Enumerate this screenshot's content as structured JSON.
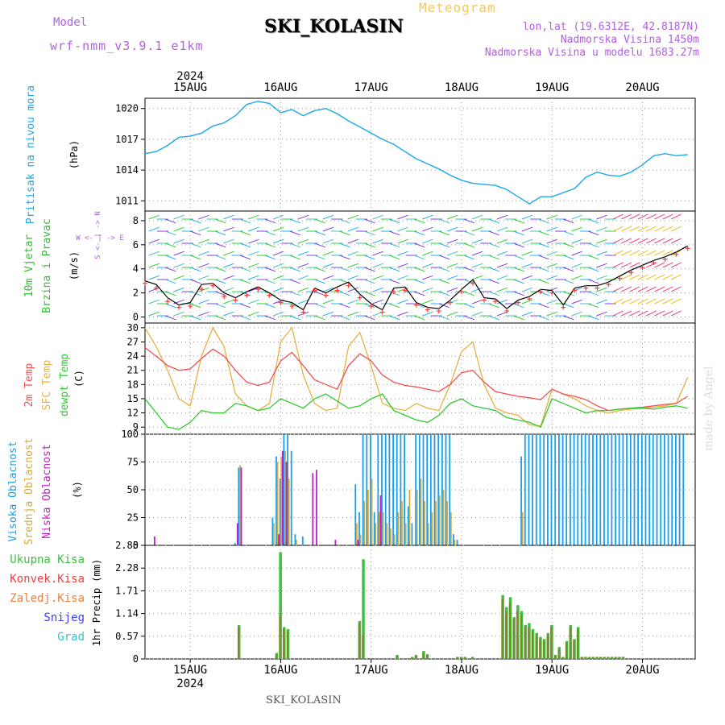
{
  "header": {
    "model_label": "Model",
    "model_value": "wrf-nmm_v3.9.1  e1km",
    "title": "SKI_KOLASIN",
    "meteogram_label": "Meteogram",
    "info_lines": [
      "lon,lat (19.6312E, 42.8187N)",
      "Nadmorska Visina 1450m",
      "Nadmorska Visina u modelu 1683.27m"
    ]
  },
  "footer_station": "SKI_KOLASIN",
  "watermark": "made by Angel",
  "time_axis": {
    "year": "2024",
    "days": [
      "15AUG",
      "16AUG",
      "17AUG",
      "18AUG",
      "19AUG",
      "20AUG"
    ]
  },
  "colors": {
    "pressure": "#1ca8e8",
    "temp2m": "#f05050",
    "sfc": "#e8b040",
    "dewpt": "#30c830",
    "high_cloud": "#18a0f0",
    "mid_cloud": "#d8a838",
    "low_cloud": "#c020c0",
    "precip_total": "#40c040",
    "precip_conv": "#f04040",
    "precip_frozen": "#f08040",
    "snow": "#4040f0",
    "graupel": "#40c0c0"
  },
  "panels": {
    "pressure": {
      "label": "Pritisak na nivou mora",
      "unit": "(hPa)",
      "ticks": [
        "1020",
        "1017",
        "1014",
        "1011"
      ]
    },
    "wind": {
      "label1": "10m  Vjetar",
      "label2": "Brzina i Pravac",
      "unit": "(m/s)",
      "compass": "W <- | -> E",
      "compass_v": "S <- | -> N",
      "ticks": [
        "8",
        "6",
        "4",
        "2",
        "0"
      ]
    },
    "temp": {
      "label1": "2m Temp",
      "label2": "SFC Temp",
      "label3": "dewpt Temp",
      "unit": "(C)",
      "ticks": [
        "30",
        "27",
        "24",
        "21",
        "18",
        "15",
        "12",
        "9"
      ]
    },
    "cloud": {
      "label1": "Visoka Oblacnost",
      "label2": "Srednja Oblacnost",
      "label3": "Niska Oblacnost",
      "unit": "(%)",
      "ticks": [
        "100",
        "75",
        "50",
        "25",
        "0"
      ]
    },
    "precip": {
      "labels": [
        "Ukupna Kisa",
        "Konvek.Kisa",
        "Zaledj.Kisa",
        "Snijeg",
        "Grad"
      ],
      "unit": "1hr Precip (mm)",
      "ticks": [
        "2.85",
        "2.28",
        "1.71",
        "1.14",
        "0.57",
        "0"
      ]
    }
  },
  "chart_data": [
    {
      "type": "line",
      "title": "",
      "ylabel": "(hPa)",
      "ylim": [
        1010,
        1021
      ],
      "x_start": "2024-08-14 12:00",
      "x": [
        0,
        3,
        6,
        9,
        12,
        15,
        18,
        21,
        24,
        27,
        30,
        33,
        36,
        39,
        42,
        45,
        48,
        51,
        54,
        57,
        60,
        63,
        66,
        69,
        72,
        75,
        78,
        81,
        84,
        87,
        90,
        93,
        96,
        99,
        102,
        105,
        108,
        111,
        114,
        117,
        120,
        123,
        126,
        129,
        132,
        135,
        138,
        141,
        144
      ],
      "series": [
        {
          "name": "Pritisak",
          "values": [
            1015.6,
            1015.8,
            1016.4,
            1017.2,
            1017.3,
            1017.6,
            1018.3,
            1018.6,
            1019.3,
            1020.4,
            1020.7,
            1020.5,
            1019.6,
            1019.9,
            1019.3,
            1019.8,
            1020.0,
            1019.5,
            1018.8,
            1018.2,
            1017.6,
            1017.0,
            1016.5,
            1015.8,
            1015.1,
            1014.6,
            1014.1,
            1013.5,
            1013.0,
            1012.7,
            1012.6,
            1012.5,
            1012.1,
            1011.4,
            1010.7,
            1011.4,
            1011.4,
            1011.8,
            1012.2,
            1013.3,
            1013.8,
            1013.5,
            1013.4,
            1013.8,
            1014.5,
            1015.4,
            1015.6,
            1015.4,
            1015.5
          ]
        }
      ]
    },
    {
      "type": "line",
      "title": "",
      "ylabel": "(m/s)",
      "ylim": [
        -0.5,
        8.8
      ],
      "x_start": "2024-08-14 12:00",
      "x": [
        0,
        3,
        6,
        9,
        12,
        15,
        18,
        21,
        24,
        27,
        30,
        33,
        36,
        39,
        42,
        45,
        48,
        51,
        54,
        57,
        60,
        63,
        66,
        69,
        72,
        75,
        78,
        81,
        84,
        87,
        90,
        93,
        96,
        99,
        102,
        105,
        108,
        111,
        114,
        117,
        120,
        123,
        126,
        129,
        132,
        135,
        138,
        141,
        144
      ],
      "series": [
        {
          "name": "Brzina vjetra",
          "values": [
            3.0,
            2.7,
            1.6,
            1.0,
            1.2,
            2.7,
            2.8,
            2.0,
            1.6,
            2.1,
            2.5,
            2.0,
            1.4,
            1.2,
            0.6,
            2.4,
            2.0,
            2.5,
            2.9,
            1.9,
            1.1,
            0.6,
            2.4,
            2.5,
            1.2,
            0.8,
            0.7,
            1.4,
            2.3,
            3.1,
            1.6,
            1.5,
            0.7,
            1.4,
            1.7,
            2.3,
            2.2,
            1.0,
            2.4,
            2.6,
            2.6,
            2.9,
            3.4,
            3.9,
            4.3,
            4.7,
            5.0,
            5.4,
            5.9
          ]
        },
        {
          "name": "Udari",
          "values": [
            2.8,
            2.4,
            1.3,
            0.8,
            0.9,
            2.3,
            2.6,
            1.7,
            1.4,
            1.8,
            2.3,
            1.8,
            1.2,
            0.9,
            0.4,
            2.2,
            1.8,
            2.2,
            2.6,
            1.6,
            0.9,
            0.4,
            2.1,
            2.2,
            1.0,
            0.6,
            0.5,
            1.2,
            2.1,
            2.8,
            1.4,
            1.3,
            0.5,
            1.2,
            1.5,
            2.1,
            2.0,
            0.8,
            2.2,
            2.4,
            2.4,
            2.7,
            3.2,
            3.7,
            4.1,
            4.5,
            4.8,
            5.2,
            5.7
          ]
        }
      ]
    },
    {
      "type": "line",
      "title": "",
      "ylabel": "(C)",
      "ylim": [
        7.5,
        31
      ],
      "x_start": "2024-08-14 12:00",
      "x": [
        0,
        3,
        6,
        9,
        12,
        15,
        18,
        21,
        24,
        27,
        30,
        33,
        36,
        39,
        42,
        45,
        48,
        51,
        54,
        57,
        60,
        63,
        66,
        69,
        72,
        75,
        78,
        81,
        84,
        87,
        90,
        93,
        96,
        99,
        102,
        105,
        108,
        111,
        114,
        117,
        120,
        123,
        126,
        129,
        132,
        135,
        138,
        141,
        144
      ],
      "series": [
        {
          "name": "2m Temp",
          "values": [
            25.8,
            24.0,
            22.0,
            21.0,
            21.3,
            23.5,
            25.5,
            24.0,
            21.0,
            18.5,
            17.8,
            18.5,
            23.0,
            24.8,
            22.0,
            19.0,
            18.0,
            17.0,
            22.0,
            24.5,
            23.0,
            20.0,
            18.5,
            17.8,
            17.5,
            17.0,
            16.5,
            18.0,
            20.5,
            21.0,
            18.5,
            16.5,
            16.0,
            15.5,
            15.2,
            14.8,
            17.0,
            16.0,
            15.5,
            14.8,
            13.5,
            12.5,
            12.8,
            13.0,
            13.2,
            13.5,
            13.8,
            14.0,
            15.5
          ]
        },
        {
          "name": "SFC Temp",
          "values": [
            30.0,
            26.0,
            21.0,
            15.0,
            13.5,
            24.0,
            30.0,
            26.0,
            16.0,
            13.5,
            12.5,
            14.0,
            27.0,
            30.0,
            20.0,
            14.0,
            12.5,
            13.0,
            26.0,
            29.0,
            22.0,
            14.0,
            13.0,
            12.5,
            14.0,
            13.0,
            12.5,
            18.0,
            25.0,
            27.0,
            18.0,
            13.0,
            12.0,
            11.5,
            9.5,
            9.2,
            17.0,
            16.0,
            15.0,
            13.5,
            12.5,
            12.0,
            12.5,
            12.8,
            13.0,
            13.2,
            13.5,
            14.0,
            19.5
          ]
        },
        {
          "name": "dewpt Temp",
          "values": [
            15.0,
            12.0,
            9.0,
            8.5,
            10.0,
            12.5,
            12.0,
            12.0,
            14.0,
            13.5,
            12.5,
            13.0,
            15.0,
            14.0,
            13.0,
            15.0,
            16.0,
            14.5,
            13.0,
            13.5,
            15.0,
            16.0,
            12.5,
            11.5,
            10.5,
            10.0,
            11.5,
            14.0,
            15.0,
            13.5,
            13.0,
            12.5,
            11.0,
            10.5,
            10.0,
            9.0,
            15.0,
            14.0,
            13.0,
            12.0,
            12.5,
            12.5,
            12.8,
            13.0,
            13.0,
            12.8,
            13.2,
            13.5,
            13.0
          ]
        }
      ]
    },
    {
      "type": "bar",
      "title": "",
      "ylabel": "(%)",
      "ylim": [
        0,
        100
      ],
      "x_start": "2024-08-14 12:00",
      "note_series": [
        "Visoka Oblacnost",
        "Srednja Oblacnost",
        "Niska Oblacnost"
      ],
      "x": [
        2,
        24,
        25,
        26,
        34,
        35,
        36,
        37,
        38,
        39,
        40,
        42,
        44,
        45,
        50,
        51,
        56,
        57,
        58,
        59,
        60,
        61,
        62,
        63,
        64,
        65,
        66,
        67,
        68,
        69,
        70,
        71,
        72,
        73,
        74,
        75,
        76,
        77,
        78,
        79,
        80,
        81,
        82,
        83,
        84,
        85,
        86,
        87,
        88,
        89,
        90,
        91,
        92,
        93,
        94,
        95,
        96,
        97,
        98,
        99,
        100,
        101,
        102,
        103,
        104,
        105,
        106,
        107,
        108,
        109,
        110,
        111,
        112,
        113,
        114,
        115,
        116,
        117,
        118,
        119,
        120,
        121,
        122,
        123,
        124,
        125,
        126,
        127,
        128,
        129,
        130,
        131,
        132,
        133,
        134,
        135,
        136,
        137,
        138,
        139,
        140,
        141,
        142,
        143
      ],
      "series": [
        {
          "name": "Visoka Oblacnost",
          "values": [
            0,
            2,
            70,
            0,
            25,
            80,
            60,
            100,
            100,
            85,
            10,
            8,
            0,
            0,
            0,
            0,
            55,
            30,
            100,
            100,
            100,
            30,
            100,
            100,
            100,
            100,
            100,
            100,
            100,
            100,
            35,
            20,
            100,
            100,
            100,
            100,
            100,
            100,
            100,
            100,
            100,
            100,
            10,
            5,
            0,
            0,
            0,
            0,
            0,
            0,
            0,
            0,
            0,
            0,
            0,
            0,
            0,
            0,
            0,
            0,
            80,
            100,
            100,
            100,
            100,
            100,
            100,
            100,
            100,
            100,
            100,
            100,
            100,
            100,
            100,
            100,
            100,
            100,
            100,
            100,
            100,
            100,
            100,
            100,
            100,
            100,
            100,
            100,
            100,
            100,
            100,
            100,
            100,
            100,
            100,
            100,
            100,
            100,
            100,
            100,
            100,
            100,
            100,
            100
          ]
        },
        {
          "name": "Srednja Oblacnost",
          "values": [
            0,
            0,
            72,
            0,
            20,
            75,
            80,
            85,
            60,
            0,
            5,
            0,
            0,
            0,
            0,
            0,
            20,
            10,
            40,
            50,
            60,
            20,
            30,
            30,
            20,
            15,
            10,
            30,
            40,
            20,
            50,
            0,
            50,
            60,
            40,
            20,
            30,
            40,
            45,
            50,
            40,
            30,
            5,
            0,
            0,
            0,
            0,
            0,
            0,
            0,
            0,
            0,
            0,
            0,
            0,
            0,
            0,
            0,
            0,
            0,
            30,
            0,
            0,
            0,
            0,
            0,
            0,
            0,
            0,
            0,
            0,
            0,
            0,
            0,
            0,
            0,
            0,
            0,
            0,
            0,
            0,
            0,
            0,
            0,
            0,
            0,
            0,
            0,
            0,
            0,
            0,
            0,
            0,
            0,
            0,
            0,
            0,
            0,
            0,
            0,
            0,
            0,
            0,
            0
          ]
        },
        {
          "name": "Niska Oblacnost",
          "values": [
            8,
            20,
            70,
            0,
            0,
            10,
            85,
            75,
            0,
            0,
            0,
            0,
            65,
            68,
            5,
            0,
            5,
            0,
            0,
            0,
            0,
            0,
            45,
            0,
            0,
            0,
            0,
            0,
            0,
            0,
            0,
            0,
            0,
            0,
            0,
            0,
            0,
            0,
            0,
            0,
            0,
            0,
            0,
            0,
            0,
            0,
            0,
            0,
            0,
            0,
            0,
            0,
            0,
            0,
            0,
            0,
            0,
            0,
            0,
            0,
            0,
            0,
            0,
            0,
            0,
            0,
            0,
            0,
            0,
            0,
            0,
            0,
            0,
            0,
            0,
            0,
            0,
            0,
            0,
            0,
            0,
            0,
            0,
            0,
            0,
            0,
            0,
            0,
            0,
            0,
            0,
            0,
            0,
            0,
            0,
            0,
            0,
            0,
            0,
            0,
            0,
            0,
            0,
            0
          ]
        }
      ]
    },
    {
      "type": "bar",
      "title": "",
      "ylabel": "1hr Precip (mm)",
      "ylim": [
        0,
        2.85
      ],
      "x_start": "2024-08-14 12:00",
      "x": [
        25,
        35,
        36,
        37,
        38,
        57,
        58,
        67,
        71,
        72,
        74,
        75,
        83,
        84,
        85,
        87,
        95,
        96,
        97,
        98,
        99,
        100,
        101,
        102,
        103,
        104,
        105,
        106,
        107,
        108,
        109,
        110,
        111,
        112,
        113,
        114,
        115,
        116,
        117,
        118,
        119,
        120,
        121,
        122,
        123,
        124,
        125,
        126,
        127
      ],
      "series": [
        {
          "name": "Ukupna Kisa",
          "values": [
            0.85,
            0.15,
            2.68,
            0.8,
            0.75,
            0.95,
            2.5,
            0.1,
            0.05,
            0.1,
            0.2,
            0.12,
            0.05,
            0.05,
            0.05,
            0.05,
            1.6,
            1.3,
            1.55,
            1.05,
            1.35,
            1.2,
            0.85,
            0.9,
            0.75,
            0.65,
            0.55,
            0.5,
            0.65,
            0.85,
            0.1,
            0.3,
            0.05,
            0.45,
            0.85,
            0.5,
            0.8,
            0.05,
            0.05,
            0.05,
            0.05,
            0.05,
            0.05,
            0.05,
            0.05,
            0.05,
            0.05,
            0.05,
            0.05
          ]
        },
        {
          "name": "Konvek.Kisa",
          "values": [
            0.8,
            0.1,
            1.1,
            0.75,
            0.7,
            0.9,
            0.6,
            0.1,
            0.05,
            0.1,
            0.15,
            0.1,
            0.05,
            0.05,
            0.05,
            0.05,
            1.5,
            1.2,
            1.4,
            1.0,
            1.2,
            1.1,
            0.8,
            0.8,
            0.7,
            0.6,
            0.5,
            0.45,
            0.6,
            0.8,
            0.1,
            0.25,
            0.05,
            0.4,
            0.8,
            0.45,
            0.75,
            0.05,
            0.05,
            0.05,
            0.05,
            0.05,
            0.05,
            0.05,
            0.05,
            0.05,
            0.05,
            0.05,
            0.05
          ]
        }
      ]
    }
  ]
}
